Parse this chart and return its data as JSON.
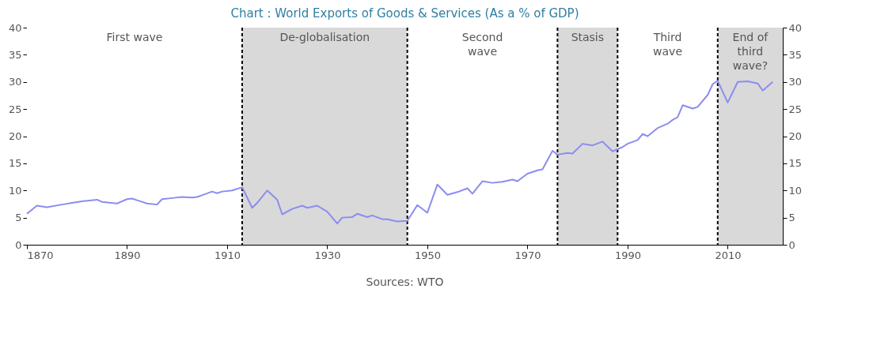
{
  "chart_data": {
    "type": "line",
    "title": "Chart : World Exports of Goods & Services (As a % of GDP)",
    "x": [
      1870,
      1872,
      1874,
      1877,
      1879,
      1881,
      1884,
      1885,
      1888,
      1890,
      1891,
      1892,
      1894,
      1896,
      1897,
      1899,
      1901,
      1903,
      1904,
      1907,
      1908,
      1909,
      1911,
      1913,
      1915,
      1916,
      1918,
      1920,
      1921,
      1923,
      1925,
      1926,
      1928,
      1930,
      1932,
      1933,
      1935,
      1936,
      1938,
      1939,
      1941,
      1942,
      1944,
      1946,
      1948,
      1950,
      1952,
      1954,
      1956,
      1958,
      1959,
      1961,
      1963,
      1965,
      1967,
      1968,
      1970,
      1972,
      1973,
      1975,
      1976,
      1978,
      1979,
      1981,
      1983,
      1985,
      1987,
      1989,
      1990,
      1992,
      1993,
      1994,
      1996,
      1998,
      1999,
      2000,
      2001,
      2003,
      2004,
      2006,
      2007,
      2008,
      2010,
      2012,
      2014,
      2016,
      2017,
      2019
    ],
    "series": [
      {
        "color": "#8c8cf0",
        "values": [
          5.7,
          7.2,
          6.9,
          7.4,
          7.7,
          8.0,
          8.3,
          7.9,
          7.6,
          8.4,
          8.5,
          8.2,
          7.6,
          7.4,
          8.4,
          8.6,
          8.8,
          8.7,
          8.8,
          9.8,
          9.5,
          9.8,
          10.0,
          10.6,
          6.8,
          7.7,
          10.0,
          8.3,
          5.6,
          6.6,
          7.2,
          6.8,
          7.2,
          6.1,
          3.9,
          5.0,
          5.1,
          5.7,
          5.1,
          5.4,
          4.7,
          4.7,
          4.3,
          4.4,
          7.3,
          5.9,
          11.1,
          9.2,
          9.7,
          10.4,
          9.4,
          11.7,
          11.4,
          11.6,
          12.0,
          11.7,
          13.1,
          13.7,
          13.9,
          17.3,
          16.6,
          16.9,
          16.8,
          18.6,
          18.3,
          19.0,
          17.2,
          18.0,
          18.6,
          19.3,
          20.4,
          20.0,
          21.5,
          22.3,
          23.0,
          23.5,
          25.7,
          25.1,
          25.4,
          27.6,
          29.6,
          30.2,
          26.2,
          30.0,
          30.1,
          29.7,
          28.4,
          30.0
        ]
      }
    ],
    "xlim": [
      1870,
      2021
    ],
    "xticks": [
      1870,
      1890,
      1910,
      1930,
      1950,
      1970,
      1990,
      2010
    ],
    "ylim": [
      0,
      40
    ],
    "yticks": [
      0,
      5,
      10,
      15,
      20,
      25,
      30,
      35,
      40
    ],
    "y2lim": [
      0,
      40
    ],
    "y2ticks": [
      0,
      5,
      10,
      15,
      20,
      25,
      30,
      35,
      40
    ],
    "bands": [
      {
        "axis": "x",
        "from": 1870,
        "to": 1913,
        "label": "First wave",
        "color": "#ffffff"
      },
      {
        "axis": "x",
        "from": 1913,
        "to": 1946,
        "label": "De-globalisation",
        "color": "#d9d9d9"
      },
      {
        "axis": "x",
        "from": 1946,
        "to": 1976,
        "label": "Second\nwave",
        "color": "#ffffff"
      },
      {
        "axis": "x",
        "from": 1976,
        "to": 1988,
        "label": "Stasis",
        "color": "#d9d9d9"
      },
      {
        "axis": "x",
        "from": 1988,
        "to": 2008,
        "label": "Third\nwave",
        "color": "#ffffff"
      },
      {
        "axis": "x",
        "from": 2008,
        "to": 2021,
        "label": "End of\nthird\nwave?",
        "color": "#d9d9d9"
      }
    ],
    "ref_lines": [
      {
        "axis": "x",
        "value": 1913,
        "line_style": "dashed",
        "color": "#000000"
      },
      {
        "axis": "x",
        "value": 1946,
        "line_style": "dashed",
        "color": "#000000"
      },
      {
        "axis": "x",
        "value": 1976,
        "line_style": "dashed",
        "color": "#000000"
      },
      {
        "axis": "x",
        "value": 1988,
        "line_style": "dashed",
        "color": "#000000"
      },
      {
        "axis": "x",
        "value": 2008,
        "line_style": "dashed",
        "color": "#000000"
      }
    ],
    "annotations": [
      "Sources: WTO"
    ],
    "grid": false,
    "marker": "none",
    "line_style": "solid"
  }
}
